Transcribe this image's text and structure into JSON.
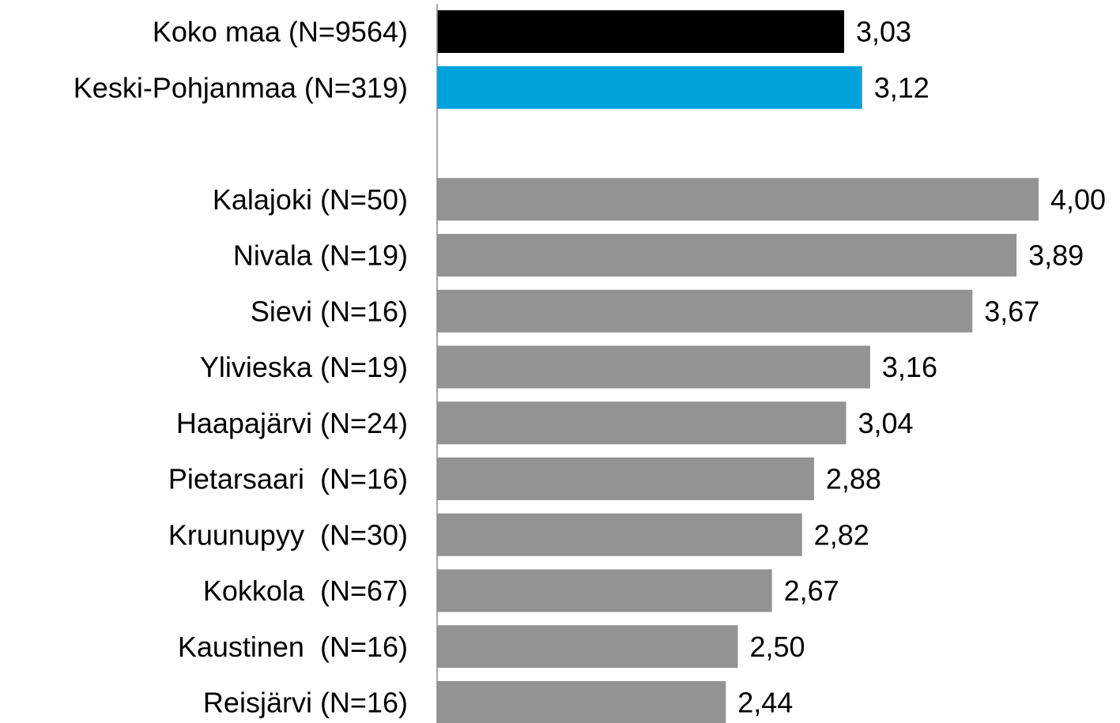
{
  "chart_data": {
    "type": "hbar",
    "categories": [
      "Koko maa (N=9564)",
      "Keski-Pohjanmaa (N=319)",
      null,
      "Kalajoki (N=50)",
      "Nivala (N=19)",
      "Sievi (N=16)",
      "Ylivieska (N=19)",
      "Haapajärvi (N=24)",
      "Pietarsaari  (N=16)",
      "Kruunupyy  (N=30)",
      "Kokkola  (N=67)",
      "Kaustinen  (N=16)",
      "Reisjärvi (N=16)"
    ],
    "values": [
      3.03,
      3.12,
      null,
      4.0,
      3.89,
      3.67,
      3.16,
      3.04,
      2.88,
      2.82,
      2.67,
      2.5,
      2.44
    ],
    "value_labels": [
      "3,03",
      "3,12",
      null,
      "4,00",
      "3,89",
      "3,67",
      "3,16",
      "3,04",
      "2,88",
      "2,82",
      "2,67",
      "2,50",
      "2,44"
    ],
    "colors": [
      "#000000",
      "#00a2db",
      null,
      "#939393",
      "#939393",
      "#939393",
      "#939393",
      "#939393",
      "#939393",
      "#939393",
      "#939393",
      "#939393",
      "#939393"
    ],
    "xlim": [
      1,
      4
    ]
  }
}
